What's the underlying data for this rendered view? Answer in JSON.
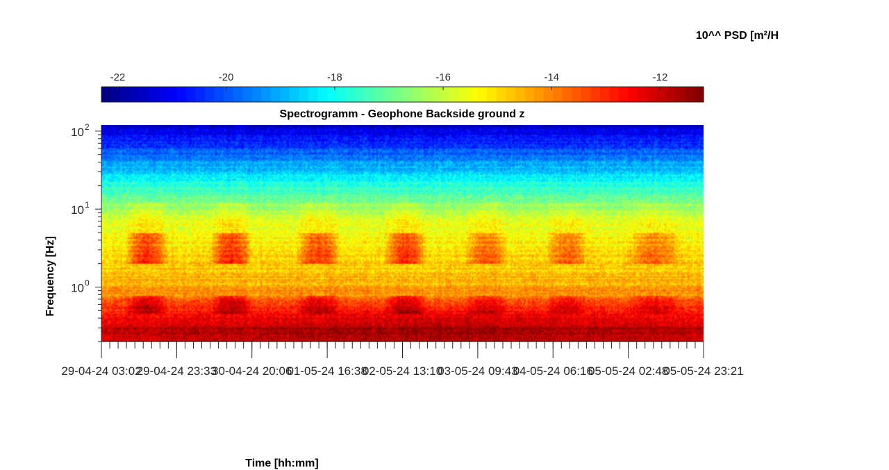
{
  "chart_data": {
    "type": "heatmap",
    "title": "Spectrogramm - Geophone Backside ground z",
    "colorbar_title": "10^^ PSD [m²/H",
    "xlabel": "Time [hh:mm]",
    "ylabel": "Frequency [Hz]",
    "x_tick_labels": [
      "29-04-24 03:02",
      "29-04-24 23:33",
      "30-04-24 20:06",
      "01-05-24 16:38",
      "02-05-24 13:10",
      "03-05-24 09:43",
      "04-05-24 06:16",
      "05-05-24 02:48",
      "05-05-24 23:21"
    ],
    "y_scale": "log",
    "ylim": [
      0.2,
      120
    ],
    "y_tick_labels": [
      {
        "base": "10",
        "exp": "0"
      },
      {
        "base": "10",
        "exp": "1"
      },
      {
        "base": "10",
        "exp": "2"
      }
    ],
    "colorbar": {
      "colormap": "jet",
      "range": [
        -22.3,
        -11.2
      ],
      "tick_labels": [
        "-22",
        "-20",
        "-18",
        "-16",
        "-14",
        "-12"
      ],
      "position": "top"
    },
    "colors": {
      "jet": [
        "#00008f",
        "#0000ff",
        "#0080ff",
        "#00ffff",
        "#80ff80",
        "#ffff00",
        "#ff8000",
        "#ff0000",
        "#800000"
      ]
    },
    "day_activity_windows": [
      {
        "start": 0.045,
        "end": 0.105,
        "strength": 1.0
      },
      {
        "start": 0.185,
        "end": 0.245,
        "strength": 1.0
      },
      {
        "start": 0.33,
        "end": 0.39,
        "strength": 0.9
      },
      {
        "start": 0.475,
        "end": 0.535,
        "strength": 1.0
      },
      {
        "start": 0.61,
        "end": 0.67,
        "strength": 0.7
      },
      {
        "start": 0.745,
        "end": 0.805,
        "strength": 0.7
      },
      {
        "start": 0.88,
        "end": 0.96,
        "strength": 0.6
      }
    ]
  }
}
